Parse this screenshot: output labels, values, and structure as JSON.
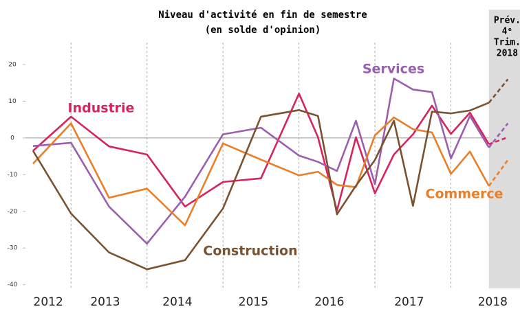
{
  "chart_data": {
    "type": "line",
    "title": [
      "Niveau d'activité en fin de semestre",
      "(en solde d'opinion)"
    ],
    "forecast_label": [
      "Prév.",
      "4ᵉ",
      "Trim.",
      "2018"
    ],
    "forecast_start": 2018.5,
    "x": [
      2012.5,
      2013,
      2013.5,
      2014,
      2014.5,
      2015,
      2015.5,
      2016,
      2016.25,
      2016.5,
      2016.75,
      2017,
      2017.25,
      2017.5,
      2017.75,
      2018,
      2018.25,
      2018.5,
      2018.75
    ],
    "xlim": [
      2012.4,
      2018.9
    ],
    "xticks": [
      {
        "value": 2012.7,
        "label": "2012"
      },
      {
        "value": 2013.45,
        "label": "2013"
      },
      {
        "value": 2014.4,
        "label": "2014"
      },
      {
        "value": 2015.4,
        "label": "2015"
      },
      {
        "value": 2016.4,
        "label": "2016"
      },
      {
        "value": 2017.45,
        "label": "2017"
      },
      {
        "value": 2018.55,
        "label": "2018"
      }
    ],
    "x_dividers": [
      2013,
      2014,
      2015,
      2016,
      2017,
      2018
    ],
    "ylim": [
      -41,
      26
    ],
    "yticks": [
      20,
      10,
      0,
      -10,
      -20,
      -30,
      -40
    ],
    "series": [
      {
        "name": "Industrie",
        "color": "#d6245e",
        "values": [
          -3.5,
          5.8,
          -2.3,
          -4.5,
          -18.7,
          -12,
          -11,
          12.1,
          0.2,
          -19.8,
          0.2,
          -15.1,
          -4.5,
          1,
          8.8,
          1.1,
          6.9,
          -1.7,
          0.2
        ]
      },
      {
        "name": "Services",
        "color": "#9b5fb0",
        "values": [
          -2.2,
          -1.3,
          -18.7,
          -28.8,
          -16,
          1,
          2.8,
          -4.8,
          -6.5,
          -9,
          4.7,
          -12.6,
          16.2,
          13.2,
          12.5,
          -5.6,
          6,
          -2.6,
          4
        ]
      },
      {
        "name": "Commerce",
        "color": "#ea7f2a",
        "values": [
          -7,
          4,
          -16.3,
          -13.8,
          -23.8,
          -1.5,
          -5.9,
          -10.2,
          -9.2,
          -12.8,
          -13.4,
          0.7,
          5.6,
          2.4,
          1.5,
          -9.8,
          -3.7,
          -13.1,
          -6
        ]
      },
      {
        "name": "Construction",
        "color": "#7a5230",
        "values": [
          -3.5,
          -20.6,
          -31.2,
          -35.8,
          -33.3,
          -19.2,
          5.8,
          7.6,
          6,
          -20.8,
          -13,
          -6,
          4.7,
          -18.5,
          7.2,
          6.7,
          7.5,
          9.6,
          16
        ]
      }
    ]
  }
}
